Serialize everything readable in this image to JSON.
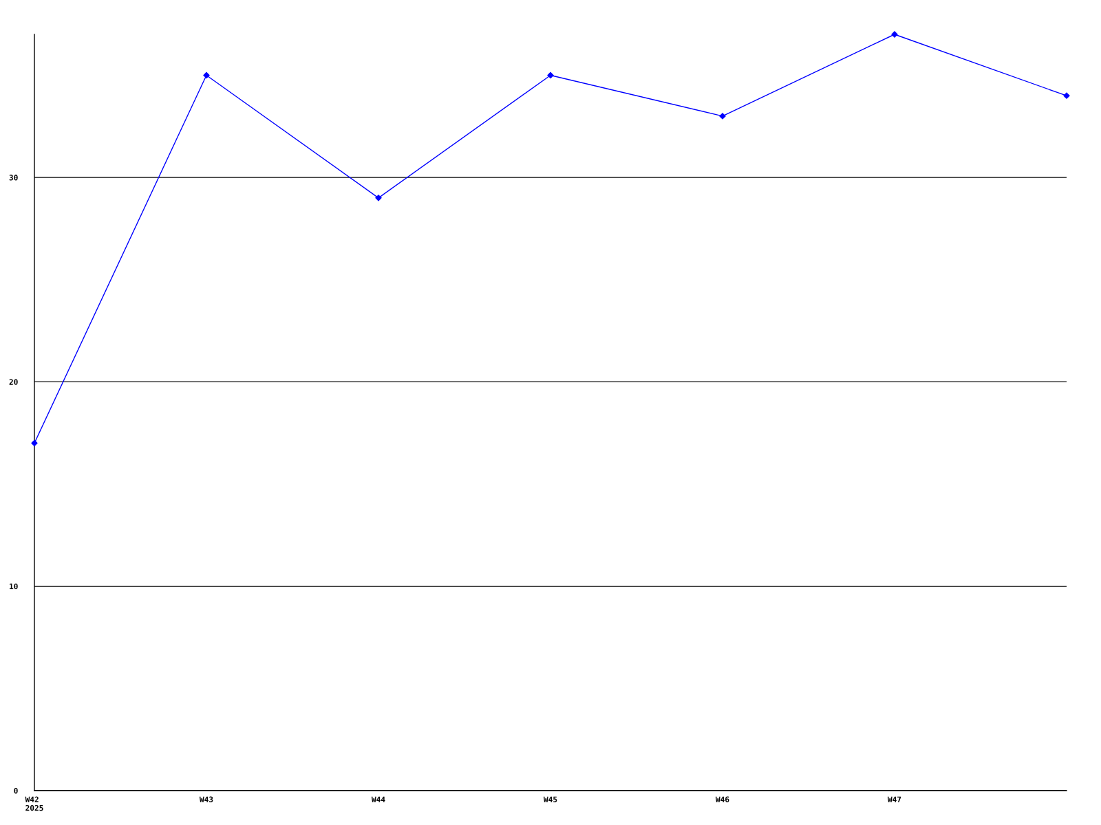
{
  "chart_data": {
    "type": "line",
    "categories": [
      "W42\n2025",
      "W43",
      "W44",
      "W45",
      "W46",
      "W47",
      null
    ],
    "series": [
      {
        "color": "#0000ff",
        "values": [
          17,
          35,
          29,
          35,
          33,
          37,
          34
        ]
      }
    ],
    "ylim": [
      0,
      37
    ],
    "yticks": [
      0,
      10,
      20,
      30
    ],
    "grid": "y",
    "marker": "diamond",
    "line_style": "solid"
  }
}
